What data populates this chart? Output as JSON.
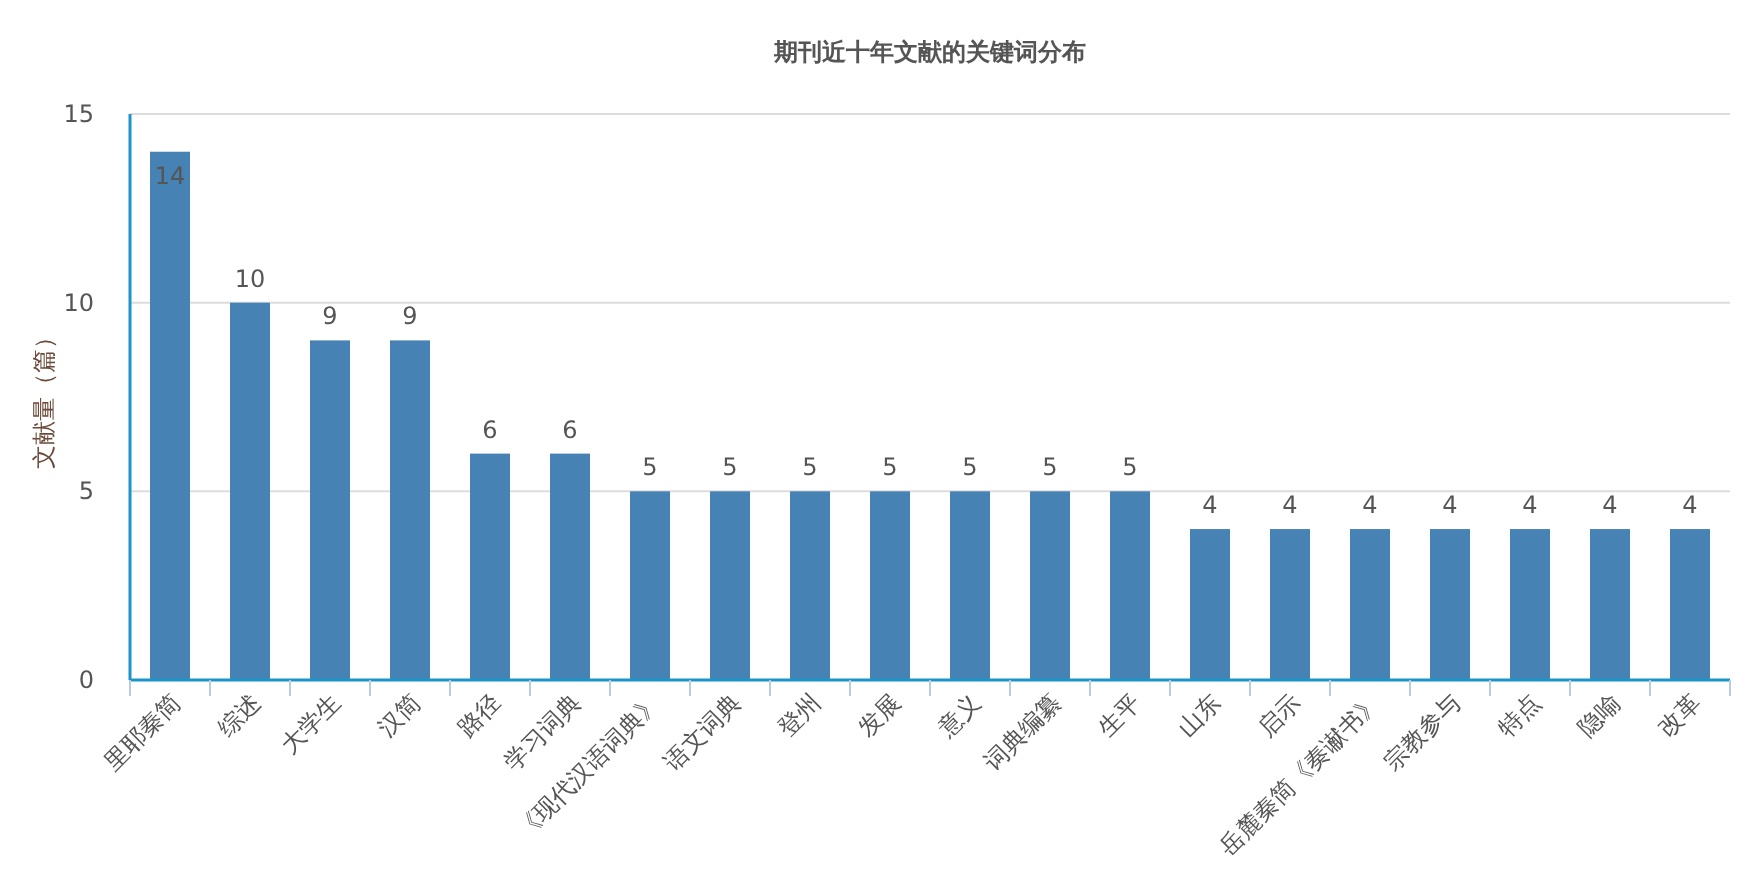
{
  "chart_data": {
    "type": "bar",
    "title": "期刊近十年文献的关键词分布",
    "ylabel": "文献量（篇）",
    "categories": [
      "里耶秦简",
      "综述",
      "大学生",
      "汉简",
      "路径",
      "学习词典",
      "《现代汉语词典》",
      "语文词典",
      "登州",
      "发展",
      "意义",
      "词典编纂",
      "生平",
      "山东",
      "启示",
      "岳麓秦简《奏谳书》",
      "宗教参与",
      "特点",
      "隐喻",
      "改革"
    ],
    "values": [
      14,
      10,
      9,
      9,
      6,
      6,
      5,
      5,
      5,
      5,
      5,
      5,
      5,
      4,
      4,
      4,
      4,
      4,
      4,
      4
    ],
    "color": "#4682b4",
    "ylim": [
      0,
      15
    ],
    "yticks": [
      0,
      5,
      10,
      15
    ],
    "grid": "y",
    "data_labels": true
  }
}
